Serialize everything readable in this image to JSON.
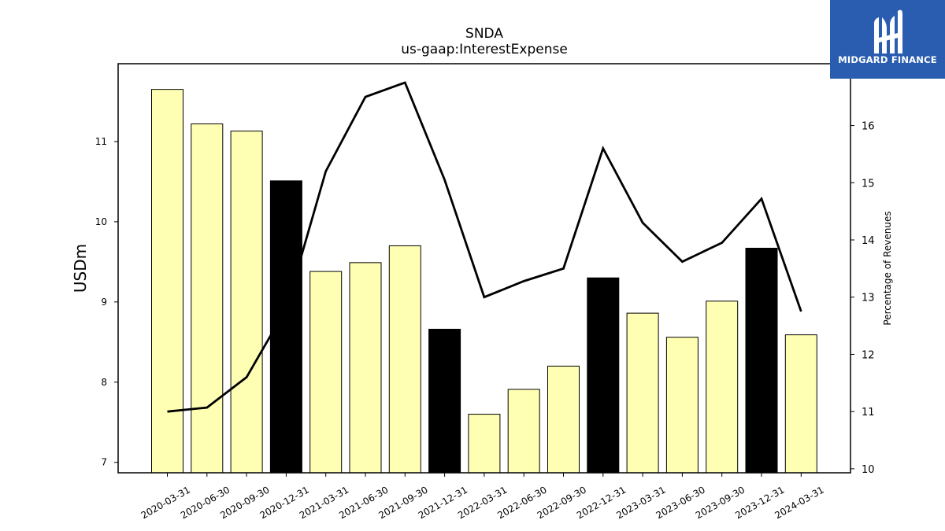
{
  "logo": {
    "text": "MIDGARD FINANCE",
    "background": "#2a5db0",
    "icon": "midgard-logo-mark"
  },
  "chart_data": {
    "type": "bar",
    "title": "SNDA",
    "subtitle": "us-gaap:InterestExpense",
    "ylabel": "USDm",
    "ylabel_right": "Percentage of Revenues",
    "categories": [
      "2020-03-31",
      "2020-06-30",
      "2020-09-30",
      "2020-12-31",
      "2021-03-31",
      "2021-06-30",
      "2021-09-30",
      "2021-12-31",
      "2022-03-31",
      "2022-06-30",
      "2022-09-30",
      "2022-12-31",
      "2023-03-31",
      "2023-06-30",
      "2023-09-30",
      "2023-12-31",
      "2024-03-31"
    ],
    "series": [
      {
        "type": "bar",
        "axis": "left",
        "values": [
          11.65,
          11.22,
          11.13,
          10.51,
          9.38,
          9.49,
          9.7,
          8.66,
          7.6,
          7.91,
          8.2,
          9.3,
          8.86,
          8.56,
          9.01,
          9.67,
          8.59
        ],
        "colors": [
          "#ffffb3",
          "#ffffb3",
          "#ffffb3",
          "#000000",
          "#ffffb3",
          "#ffffb3",
          "#ffffb3",
          "#000000",
          "#ffffb3",
          "#ffffb3",
          "#ffffb3",
          "#000000",
          "#ffffb3",
          "#ffffb3",
          "#ffffb3",
          "#000000",
          "#ffffb3"
        ]
      },
      {
        "type": "line",
        "axis": "right",
        "values": [
          11.0,
          11.07,
          11.6,
          12.8,
          15.2,
          16.5,
          16.75,
          15.05,
          13.0,
          13.28,
          13.5,
          15.6,
          14.3,
          13.62,
          13.95,
          14.72,
          12.75
        ],
        "color": "#000000"
      }
    ],
    "ylim": [
      6.87,
      11.97
    ],
    "yticks": [
      7,
      8,
      9,
      10,
      11
    ],
    "ylim_right": [
      9.93,
      17.08
    ],
    "yticks_right": [
      10,
      11,
      12,
      13,
      14,
      15,
      16
    ],
    "grid": false,
    "legend": "none"
  }
}
